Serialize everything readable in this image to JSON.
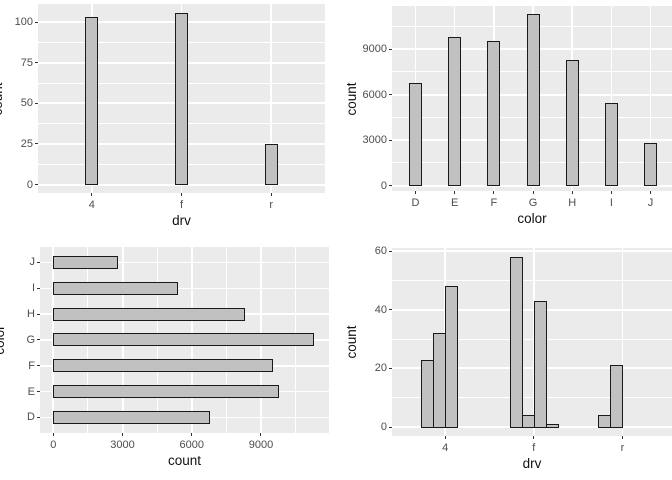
{
  "figure": {
    "background": "#ffffff",
    "panel_bg": "#ebebeb",
    "grid_color": "#ffffff",
    "bar_fill": "#c1c1c1",
    "bar_stroke": "#1a1a1a",
    "tick_mark_color": "#333333",
    "tick_label_color": "#4d4d4d",
    "title_color": "#111111"
  },
  "chart_data": [
    {
      "id": "tl",
      "type": "bar",
      "orientation": "vertical",
      "title": "",
      "xlabel": "drv",
      "ylabel": "count",
      "categories": [
        "4",
        "f",
        "r"
      ],
      "values": [
        103,
        106,
        25
      ],
      "yticks": [
        0,
        25,
        50,
        75,
        100
      ],
      "ylim": [
        0,
        111.3
      ],
      "grid": "major+minor",
      "legend": "none"
    },
    {
      "id": "tr",
      "type": "bar",
      "orientation": "vertical",
      "title": "",
      "xlabel": "color",
      "ylabel": "count",
      "categories": [
        "D",
        "E",
        "F",
        "G",
        "H",
        "I",
        "J"
      ],
      "values": [
        6775,
        9797,
        9542,
        11292,
        8304,
        5422,
        2808
      ],
      "yticks": [
        0,
        3000,
        6000,
        9000
      ],
      "ylim": [
        0,
        11857
      ],
      "grid": "major+minor",
      "legend": "none"
    },
    {
      "id": "bl",
      "type": "bar",
      "orientation": "horizontal",
      "title": "",
      "xlabel": "count",
      "ylabel": "color",
      "categories": [
        "J",
        "I",
        "H",
        "G",
        "F",
        "E",
        "D"
      ],
      "values": [
        2808,
        5422,
        8304,
        11292,
        9542,
        9797,
        6775
      ],
      "xticks": [
        0,
        3000,
        6000,
        9000
      ],
      "xlim": [
        0,
        11857
      ],
      "grid": "major+minor",
      "legend": "none"
    },
    {
      "id": "br",
      "type": "bar",
      "orientation": "vertical-grouped",
      "title": "",
      "xlabel": "drv",
      "ylabel": "count",
      "categories": [
        "4",
        "f",
        "r"
      ],
      "series_note": "dodged sub-bars per category, left-packed slots",
      "groups": [
        [
          23,
          32,
          48
        ],
        [
          58,
          4,
          43,
          1
        ],
        [
          4,
          21
        ]
      ],
      "yticks": [
        0,
        20,
        40,
        60
      ],
      "ylim": [
        0,
        60.9
      ],
      "grid": "major+minor",
      "legend": "none"
    }
  ]
}
